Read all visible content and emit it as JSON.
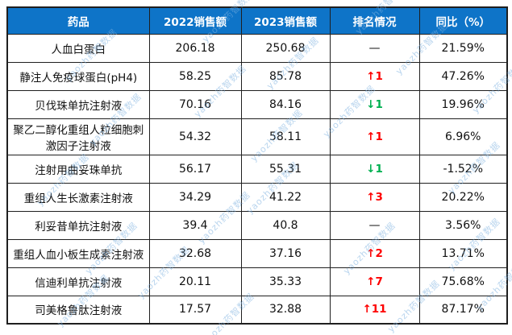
{
  "chart_data": {
    "type": "table",
    "title": "",
    "columns": [
      "药品",
      "2022销售额",
      "2023销售额",
      "排名情况",
      "同比（%）"
    ],
    "rows": [
      [
        "人血白蛋白",
        206.18,
        250.68,
        "—",
        "21.59%"
      ],
      [
        "静注人免疫球蛋白(pH4)",
        58.25,
        85.78,
        "↑1",
        "47.26%"
      ],
      [
        "贝伐珠单抗注射液",
        70.16,
        84.16,
        "↓1",
        "19.96%"
      ],
      [
        "聚乙二醇化重组人粒细胞刺激因子注射液",
        54.32,
        58.11,
        "↑1",
        "6.96%"
      ],
      [
        "注射用曲妥珠单抗",
        56.17,
        55.31,
        "↓1",
        "-1.52%"
      ],
      [
        "重组人生长激素注射液",
        34.29,
        41.22,
        "↑3",
        "20.22%"
      ],
      [
        "利妥昔单抗注射液",
        39.4,
        40.8,
        "—",
        "3.56%"
      ],
      [
        "重组人血小板生成素注射液",
        32.68,
        37.16,
        "↑2",
        "13.71%"
      ],
      [
        "信迪利单抗注射液",
        20.11,
        35.33,
        "↑7",
        "75.68%"
      ],
      [
        "司美格鲁肽注射液",
        17.57,
        32.88,
        "↑11",
        "87.17%"
      ]
    ]
  },
  "table": {
    "headers": [
      "药品",
      "2022销售额",
      "2023销售额",
      "排名情况",
      "同比（%）"
    ],
    "rows": [
      {
        "drug": "人血白蛋白",
        "sales2022": "206.18",
        "sales2023": "250.68",
        "rank": "—",
        "rank_dir": "none",
        "yoy": "21.59%"
      },
      {
        "drug": "静注人免疫球蛋白(pH4)",
        "sales2022": "58.25",
        "sales2023": "85.78",
        "rank": "↑1",
        "rank_dir": "up",
        "yoy": "47.26%"
      },
      {
        "drug": "贝伐珠单抗注射液",
        "sales2022": "70.16",
        "sales2023": "84.16",
        "rank": "↓1",
        "rank_dir": "down",
        "yoy": "19.96%"
      },
      {
        "drug": "聚乙二醇化重组人粒细胞刺激因子注射液",
        "sales2022": "54.32",
        "sales2023": "58.11",
        "rank": "↑1",
        "rank_dir": "up",
        "yoy": "6.96%"
      },
      {
        "drug": "注射用曲妥珠单抗",
        "sales2022": "56.17",
        "sales2023": "55.31",
        "rank": "↓1",
        "rank_dir": "down",
        "yoy": "-1.52%"
      },
      {
        "drug": "重组人生长激素注射液",
        "sales2022": "34.29",
        "sales2023": "41.22",
        "rank": "↑3",
        "rank_dir": "up",
        "yoy": "20.22%"
      },
      {
        "drug": "利妥昔单抗注射液",
        "sales2022": "39.4",
        "sales2023": "40.8",
        "rank": "—",
        "rank_dir": "none",
        "yoy": "3.56%"
      },
      {
        "drug": "重组人血小板生成素注射液",
        "sales2022": "32.68",
        "sales2023": "37.16",
        "rank": "↑2",
        "rank_dir": "up",
        "yoy": "13.71%"
      },
      {
        "drug": "信迪利单抗注射液",
        "sales2022": "20.11",
        "sales2023": "35.33",
        "rank": "↑7",
        "rank_dir": "up",
        "yoy": "75.68%"
      },
      {
        "drug": "司美格鲁肽注射液",
        "sales2022": "17.57",
        "sales2023": "32.88",
        "rank": "↑11",
        "rank_dir": "up",
        "yoy": "87.17%"
      }
    ]
  },
  "watermark": {
    "text": "yaozh药智数据"
  },
  "colors": {
    "header_bg": "#0E74C8",
    "header_text": "#FFFFFF",
    "rank_up": "#FE0000",
    "rank_down": "#00B050",
    "border": "#1F1F1F",
    "watermark": "#7FB2E0"
  }
}
